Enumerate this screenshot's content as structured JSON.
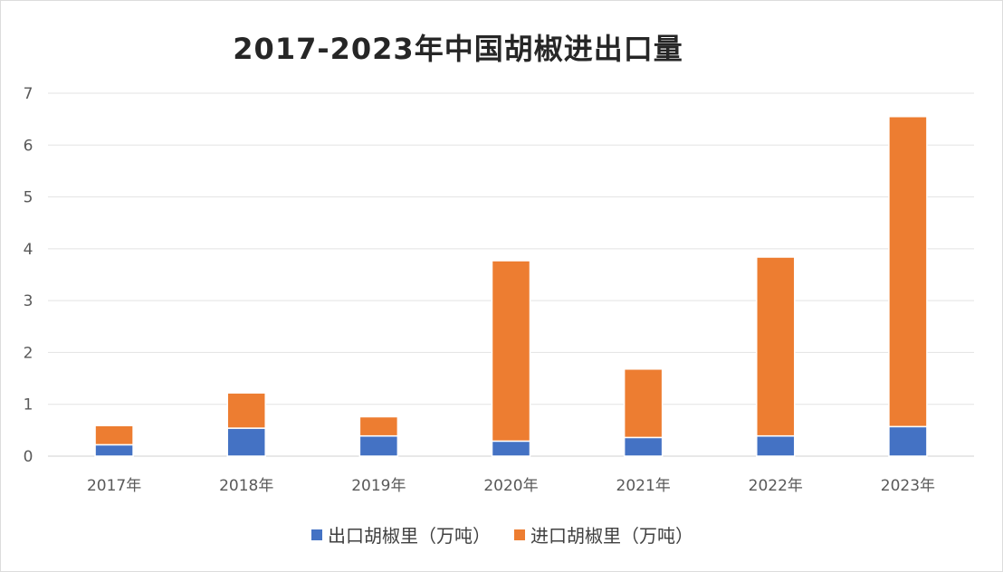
{
  "chart_data": {
    "type": "bar",
    "stacked": true,
    "title": "2017-2023年中国胡椒进出口量",
    "categories": [
      "2017年",
      "2018年",
      "2019年",
      "2020年",
      "2021年",
      "2022年",
      "2023年"
    ],
    "series": [
      {
        "name": "出口胡椒里（万吨）",
        "color": "#4472c4",
        "values": [
          0.22,
          0.54,
          0.39,
          0.29,
          0.36,
          0.39,
          0.57
        ]
      },
      {
        "name": "进口胡椒里（万吨）",
        "color": "#ed7d31",
        "values": [
          0.37,
          0.68,
          0.37,
          3.48,
          1.32,
          3.45,
          5.98
        ]
      }
    ],
    "ylim": [
      0,
      7
    ],
    "yticks": [
      "0",
      "1",
      "2",
      "3",
      "4",
      "5",
      "6",
      "7"
    ],
    "grid": true,
    "legend_position": "bottom"
  }
}
